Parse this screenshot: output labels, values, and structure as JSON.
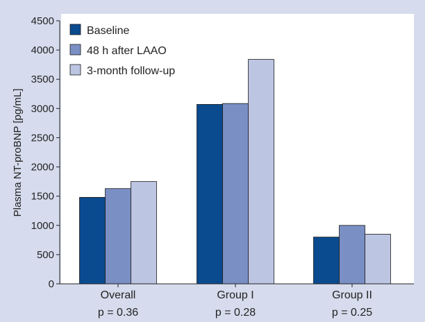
{
  "chart_data": {
    "type": "bar",
    "title": "",
    "xlabel": "",
    "ylabel": "Plasma NT-proBNP [pg/mL]",
    "ylim": [
      0,
      4500
    ],
    "yticks": [
      0,
      500,
      1000,
      1500,
      2000,
      2500,
      3000,
      3500,
      4000,
      4500
    ],
    "grid": false,
    "legend_position": "top-left",
    "categories": [
      "Overall",
      "Group I",
      "Group II"
    ],
    "category_sublabels": [
      "p = 0.36",
      "p = 0.28",
      "p = 0.25"
    ],
    "series": [
      {
        "name": "Baseline",
        "color": "#0a4a8e",
        "values": [
          1480,
          3070,
          800
        ]
      },
      {
        "name": "48 h after LAAO",
        "color": "#7a8fc4",
        "values": [
          1630,
          3085,
          1000
        ]
      },
      {
        "name": "3-month follow-up",
        "color": "#bcc5e2",
        "values": [
          1750,
          3840,
          850
        ]
      }
    ],
    "colors": {
      "background": "#d6dced",
      "plot_background": "#ffffff",
      "axis": "#222222"
    }
  }
}
